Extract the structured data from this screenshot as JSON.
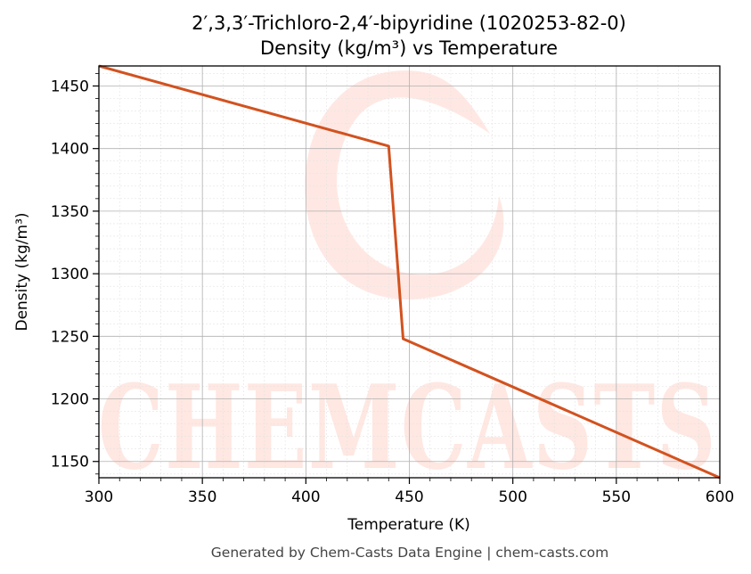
{
  "watermark": {
    "text": "CHEMCASTS"
  },
  "footer": {
    "text": "Generated by Chem-Casts Data Engine | chem-casts.com"
  },
  "chart_data": {
    "type": "line",
    "title": "2′,3,3′-Trichloro-2,4′-bipyridine (1020253-82-0)",
    "subtitle": "Density (kg/m³) vs Temperature",
    "xlabel": "Temperature (K)",
    "ylabel": "Density (kg/m³)",
    "xlim": [
      300,
      600
    ],
    "ylim": [
      1137,
      1466
    ],
    "xticks": [
      300,
      350,
      400,
      450,
      500,
      550,
      600
    ],
    "yticks": [
      1150,
      1200,
      1250,
      1300,
      1350,
      1400,
      1450
    ],
    "grid": true,
    "legend": "none",
    "series": [
      {
        "color": "#d2521f",
        "x": [
          300,
          440,
          447,
          600
        ],
        "y": [
          1466,
          1402,
          1248,
          1137
        ]
      }
    ]
  }
}
